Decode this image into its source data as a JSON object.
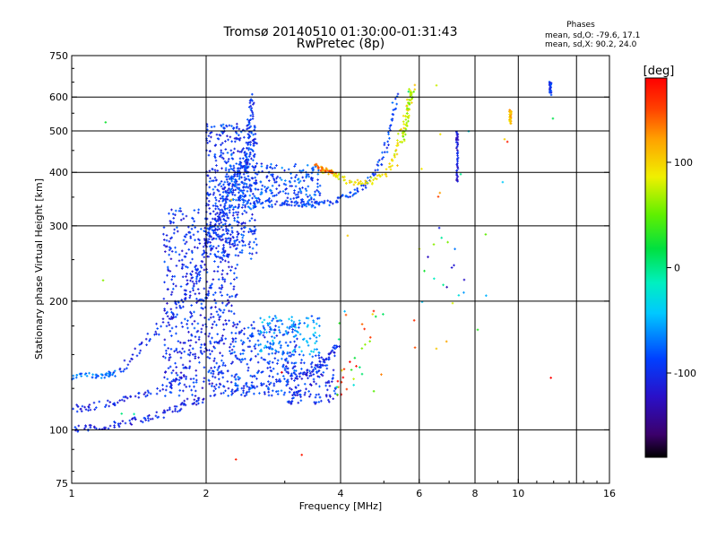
{
  "header": {
    "title": "Tromsø 20140510 01:30:00-01:31:43",
    "subtitle": "RwPretec (8p)"
  },
  "stats": {
    "heading": "Phases",
    "line_o": "mean, sd,O: -79.6, 17.1",
    "line_x": "mean, sd,X:  90.2, 24.0"
  },
  "colorbar": {
    "unit_label": "[deg]",
    "range": [
      -180,
      180
    ],
    "ticks": [
      {
        "value": 100,
        "label": "100"
      },
      {
        "value": 0,
        "label": "0"
      },
      {
        "value": -100,
        "label": "-100"
      }
    ]
  },
  "chart_data": {
    "type": "scatter",
    "title": "Tromsø 20140510 01:30:00-01:31:43",
    "subtitle": "RwPretec (8p)",
    "xlabel": "Frequency [MHz]",
    "ylabel": "Stationary phase Virtual Height [km]",
    "x_scale": "log",
    "y_scale": "log",
    "xlim": [
      1,
      16
    ],
    "ylim": [
      75,
      750
    ],
    "x_ticks": [
      {
        "value": 1,
        "label": "1"
      },
      {
        "value": 2,
        "label": "2"
      },
      {
        "value": 4,
        "label": "4"
      },
      {
        "value": 6,
        "label": "6"
      },
      {
        "value": 8,
        "label": "8"
      },
      {
        "value": 10,
        "label": "10"
      },
      {
        "value": 16,
        "label": "16"
      }
    ],
    "x_grid": [
      2,
      4,
      6,
      8,
      10,
      13.5
    ],
    "y_ticks": [
      {
        "value": 75,
        "label": "75"
      },
      {
        "value": 100,
        "label": "100"
      },
      {
        "value": 200,
        "label": "200"
      },
      {
        "value": 300,
        "label": "300"
      },
      {
        "value": 400,
        "label": "400"
      },
      {
        "value": 500,
        "label": "500"
      },
      {
        "value": 600,
        "label": "600"
      },
      {
        "value": 750,
        "label": "750"
      }
    ],
    "y_grid": [
      100,
      200,
      300,
      400,
      500,
      600
    ],
    "color_scale": "phase in degrees, rainbow from -180 (black) to +180 (red)",
    "grid": true,
    "legend": "none",
    "traces": [
      {
        "name": "",
        "phase": -105,
        "spread": 0.04,
        "points": [
          [
            1.0,
            100
          ],
          [
            1.1,
            101
          ],
          [
            1.25,
            103
          ],
          [
            1.4,
            105
          ],
          [
            1.55,
            108
          ],
          [
            1.7,
            112
          ],
          [
            1.85,
            116
          ],
          [
            2.0,
            118
          ]
        ]
      },
      {
        "name": "",
        "phase": -70,
        "spread": 0.03,
        "points": [
          [
            1.0,
            133
          ],
          [
            1.1,
            134
          ],
          [
            1.2,
            134
          ],
          [
            1.25,
            136
          ]
        ]
      },
      {
        "name": "",
        "phase": -105,
        "spread": 0.04,
        "points": [
          [
            1.0,
            112
          ],
          [
            1.1,
            113
          ],
          [
            1.25,
            116
          ],
          [
            1.4,
            120
          ],
          [
            1.6,
            126
          ],
          [
            1.8,
            132
          ]
        ]
      },
      {
        "name": "",
        "phase": -100,
        "spread": 0.05,
        "points": [
          [
            1.25,
            135
          ],
          [
            1.4,
            150
          ],
          [
            1.55,
            170
          ],
          [
            1.7,
            190
          ],
          [
            1.85,
            215
          ],
          [
            1.95,
            245
          ],
          [
            2.05,
            285
          ],
          [
            2.15,
            320
          ],
          [
            2.25,
            360
          ],
          [
            2.35,
            395
          ],
          [
            2.42,
            420
          ],
          [
            2.5,
            440
          ]
        ]
      },
      {
        "name": "",
        "phase": -95,
        "spread": 0.03,
        "points": [
          [
            2.45,
            400
          ],
          [
            2.48,
            450
          ],
          [
            2.5,
            500
          ],
          [
            2.52,
            550
          ],
          [
            2.55,
            605
          ]
        ]
      },
      {
        "name": "",
        "phase": -90,
        "spread": 0.03,
        "points": [
          [
            2.2,
            360
          ],
          [
            2.5,
            345
          ],
          [
            2.9,
            340
          ],
          [
            3.2,
            338
          ],
          [
            3.5,
            336
          ],
          [
            3.8,
            340
          ],
          [
            4.1,
            350
          ],
          [
            4.4,
            365
          ],
          [
            4.7,
            390
          ],
          [
            5.0,
            440
          ],
          [
            5.2,
            520
          ],
          [
            5.35,
            610
          ]
        ]
      },
      {
        "name": "",
        "phase": -100,
        "spread": 0.03,
        "points": [
          [
            2.3,
            122
          ],
          [
            2.6,
            126
          ],
          [
            3.0,
            130
          ],
          [
            3.3,
            135
          ],
          [
            3.6,
            142
          ],
          [
            3.8,
            150
          ],
          [
            3.95,
            160
          ]
        ]
      },
      {
        "name": "",
        "phase": 90,
        "spread": 0.03,
        "points": [
          [
            3.6,
            410
          ],
          [
            3.9,
            395
          ],
          [
            4.2,
            380
          ],
          [
            4.6,
            378
          ],
          [
            5.0,
            395
          ],
          [
            5.3,
            440
          ],
          [
            5.5,
            500
          ],
          [
            5.65,
            570
          ],
          [
            5.8,
            640
          ]
        ]
      },
      {
        "name": "",
        "phase": 140,
        "spread": 0.02,
        "points": [
          [
            3.5,
            415
          ],
          [
            3.7,
            405
          ],
          [
            3.9,
            398
          ]
        ]
      },
      {
        "name": "",
        "phase": 70,
        "spread": 0.02,
        "points": [
          [
            5.5,
            470
          ],
          [
            5.6,
            520
          ],
          [
            5.7,
            580
          ],
          [
            5.8,
            620
          ]
        ]
      },
      {
        "name": "",
        "phase": -115,
        "spread": 0.01,
        "points": [
          [
            7.3,
            380
          ],
          [
            7.3,
            420
          ],
          [
            7.3,
            470
          ],
          [
            7.3,
            500
          ]
        ]
      },
      {
        "name": "",
        "phase": 110,
        "spread": 0.01,
        "points": [
          [
            9.6,
            520
          ],
          [
            9.6,
            540
          ],
          [
            9.6,
            560
          ]
        ]
      },
      {
        "name": "",
        "phase": -100,
        "spread": 0.01,
        "points": [
          [
            11.8,
            610
          ],
          [
            11.8,
            640
          ],
          [
            11.8,
            650
          ]
        ]
      }
    ],
    "clouds": [
      {
        "name": "",
        "phase": -100,
        "count": 620,
        "x": [
          1.6,
          2.35
        ],
        "y": [
          120,
          330
        ]
      },
      {
        "name": "",
        "phase": -95,
        "count": 450,
        "x": [
          2.0,
          2.6
        ],
        "y": [
          250,
          520
        ]
      },
      {
        "name": "",
        "phase": -85,
        "count": 280,
        "x": [
          2.2,
          3.6
        ],
        "y": [
          330,
          420
        ]
      },
      {
        "name": "",
        "phase": -90,
        "count": 220,
        "x": [
          2.3,
          3.2
        ],
        "y": [
          120,
          180
        ]
      },
      {
        "name": "",
        "phase": -60,
        "count": 110,
        "x": [
          2.6,
          3.6
        ],
        "y": [
          150,
          185
        ]
      },
      {
        "name": "",
        "phase": -100,
        "count": 140,
        "x": [
          3.0,
          3.9
        ],
        "y": [
          115,
          150
        ]
      },
      {
        "name": "",
        "phase": 80,
        "count": 35,
        "x": [
          3.9,
          5.0
        ],
        "y": [
          120,
          190
        ]
      },
      {
        "name": "",
        "phase": -40,
        "count": 16,
        "x": [
          6.0,
          8.0
        ],
        "y": [
          190,
          300
        ]
      },
      {
        "name": "",
        "phase": 60,
        "count": 20,
        "x": [
          5.0,
          10.0
        ],
        "y": [
          150,
          650
        ]
      },
      {
        "name": "",
        "phase": 100,
        "count": 12,
        "x": [
          1.1,
          12.0
        ],
        "y": [
          78,
          700
        ]
      }
    ]
  }
}
